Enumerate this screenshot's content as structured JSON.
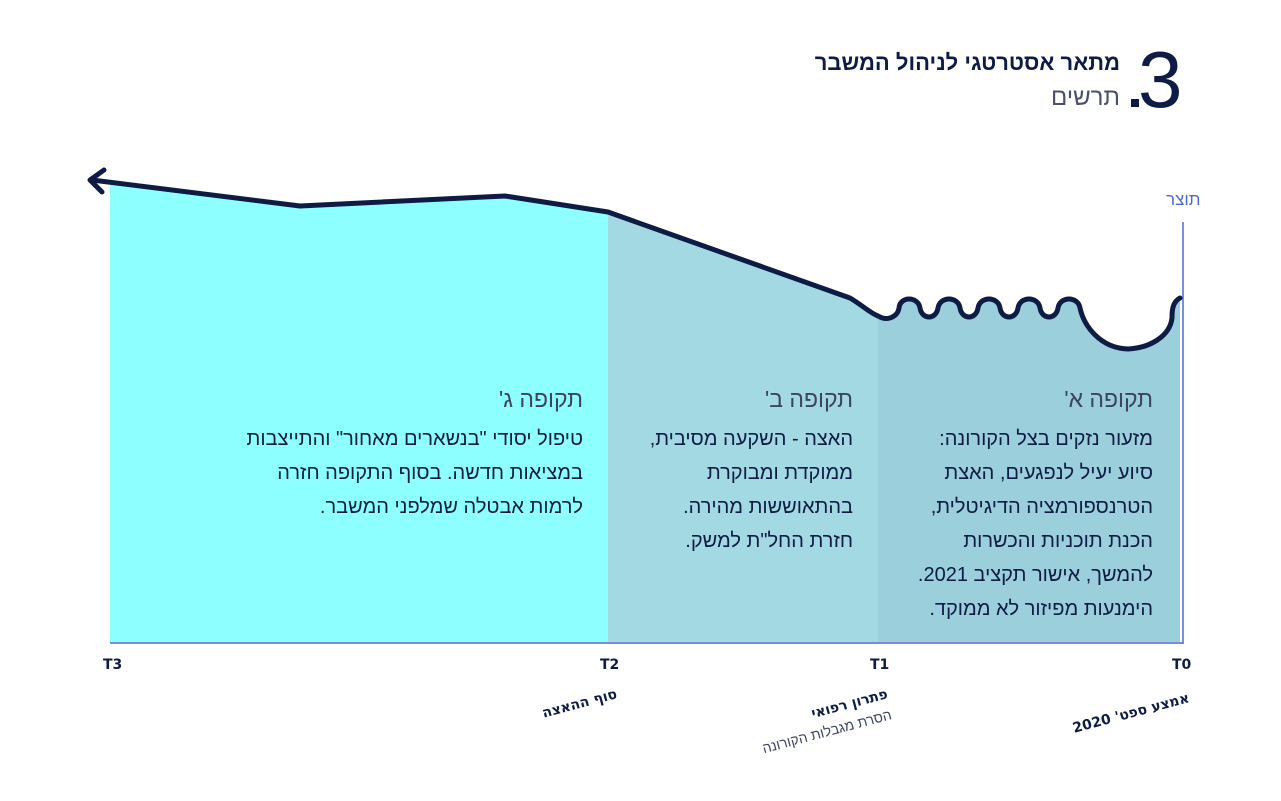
{
  "header": {
    "number": "3",
    "title": "מתאר אסטרטגי לניהול המשבר",
    "subtitle": "תרשים"
  },
  "axis": {
    "y_label": "תוצר",
    "ticks": [
      {
        "id": "T0",
        "label": "T0",
        "caption": "אמצע ספט' 2020",
        "caption2": ""
      },
      {
        "id": "T1",
        "label": "T1",
        "caption": "פתרון רפואי",
        "caption2": "הסרת מגבלות הקורונה"
      },
      {
        "id": "T2",
        "label": "T2",
        "caption": "סוף ההאצה",
        "caption2": ""
      },
      {
        "id": "T3",
        "label": "T3",
        "caption": "",
        "caption2": ""
      }
    ]
  },
  "periods": [
    {
      "id": "a",
      "title": "תקופה א'",
      "lines": [
        "מזעור נזקים בצל הקורונה:",
        "סיוע יעיל לנפגעים, האצת",
        "הטרנספורמציה הדיגיטלית,",
        "הכנת תוכניות והכשרות",
        "להמשך, אישור תקציב 2021.",
        "הימנעות מפיזור לא ממוקד."
      ],
      "color": "#9bcfdb"
    },
    {
      "id": "b",
      "title": "תקופה ב'",
      "lines": [
        "האצה - השקעה מסיבית,",
        "ממוקדת ומבוקרת",
        "בהתאוששות מהירה.",
        "חזרת החל\"ת למשק."
      ],
      "color": "#a3d9e3"
    },
    {
      "id": "c",
      "title": "תקופה ג'",
      "lines": [
        "טיפול יסודי \"בנשארים מאחור\" והתייצבות",
        "במציאות חדשה. בסוף התקופה חזרה",
        "לרמות אבטלה שמלפני המשבר."
      ],
      "color": "#8effff"
    }
  ],
  "colors": {
    "curve": "#0e1b45",
    "axis_line": "#4f6bc9",
    "ylabel": "#4f6bc9"
  }
}
